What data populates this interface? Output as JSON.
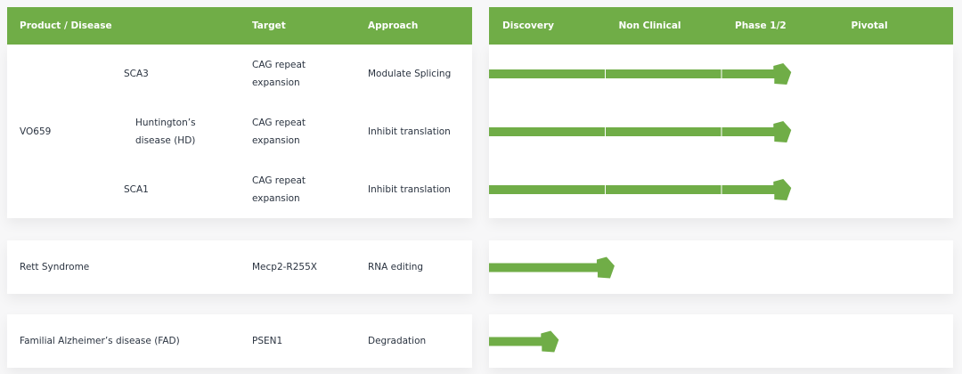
{
  "header": {
    "columns": [
      "Product / Disease",
      "Target",
      "Approach"
    ],
    "stages": [
      "Discovery",
      "Non Clinical",
      "Phase 1/2",
      "Pivotal"
    ]
  },
  "groups": [
    {
      "product": "VO659",
      "rows": [
        {
          "disease": "SCA3",
          "target": "CAG repeat expansion",
          "approach": "Modulate Splicing",
          "progress": 2.6
        },
        {
          "disease": "Huntington’s disease (HD)",
          "target": "CAG repeat expansion",
          "approach": "Inhibit translation",
          "progress": 2.6
        },
        {
          "disease": "SCA1",
          "target": "CAG repeat expansion",
          "approach": "Inhibit translation",
          "progress": 2.6
        }
      ]
    },
    {
      "rows": [
        {
          "product": "Rett Syndrome",
          "target": "Mecp2-R255X",
          "approach": "RNA editing",
          "progress": 1.08
        }
      ]
    },
    {
      "rows": [
        {
          "product": "Familial Alzheimer’s disease (FAD)",
          "target": "PSEN1",
          "approach": "Degradation",
          "progress": 0.6
        }
      ]
    }
  ]
}
